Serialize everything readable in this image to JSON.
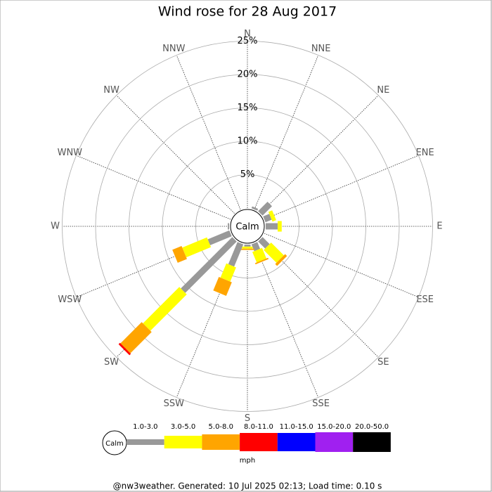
{
  "chart_data": {
    "type": "windrose",
    "title": "Wind rose for 28 Aug 2017",
    "categories": [
      "N",
      "NNE",
      "NE",
      "ENE",
      "E",
      "ESE",
      "SE",
      "SSE",
      "S",
      "SSW",
      "SW",
      "WSW",
      "W",
      "WNW",
      "NW",
      "NNW"
    ],
    "series": [
      {
        "name": "1.0-3.0",
        "color": "#999999",
        "values": [
          0,
          0.3,
          2.0,
          1.0,
          1.8,
          0,
          1.5,
          1.1,
          0.3,
          3.6,
          10.9,
          3.5,
          0.2,
          0,
          0,
          0
        ]
      },
      {
        "name": "3.0-5.0",
        "color": "#ffff00",
        "values": [
          0,
          0,
          0,
          0.6,
          0.6,
          0,
          2.7,
          1.7,
          0.3,
          2.3,
          7.7,
          4.0,
          0,
          0,
          0,
          0
        ]
      },
      {
        "name": "5.0-8.0",
        "color": "#ffa500",
        "values": [
          0,
          0,
          0,
          0,
          0,
          0,
          0.4,
          0.2,
          0.2,
          2.2,
          4.5,
          1.5,
          0,
          0,
          0,
          0
        ]
      },
      {
        "name": "8.0-11.0",
        "color": "#ff0000",
        "values": [
          0,
          0,
          0,
          0,
          0,
          0,
          0,
          0,
          0,
          0,
          0.3,
          0,
          0,
          0,
          0,
          0
        ]
      },
      {
        "name": "11.0-15.0",
        "color": "#0000ff",
        "values": [
          0,
          0,
          0,
          0,
          0,
          0,
          0,
          0,
          0,
          0,
          0,
          0,
          0,
          0,
          0,
          0
        ]
      },
      {
        "name": "15.0-20.0",
        "color": "#a020f0",
        "values": [
          0,
          0,
          0,
          0,
          0,
          0,
          0,
          0,
          0,
          0,
          0,
          0,
          0,
          0,
          0,
          0
        ]
      },
      {
        "name": "20.0-50.0",
        "color": "#000000",
        "values": [
          0,
          0,
          0,
          0,
          0,
          0,
          0,
          0,
          0,
          0,
          0,
          0,
          0,
          0,
          0,
          0
        ]
      }
    ],
    "ylim": [
      0,
      25
    ],
    "yticks": [
      {
        "value": 5,
        "label": "5%"
      },
      {
        "value": 10,
        "label": "10%"
      },
      {
        "value": 15,
        "label": "15%"
      },
      {
        "value": 20,
        "label": "20%"
      },
      {
        "value": 25,
        "label": "25%"
      }
    ],
    "calm_label": "Calm",
    "unit_label": "mph",
    "footer": "@nw3weather. Generated: 10 Jul 2025 02:13; Load time: 0.10 s"
  }
}
